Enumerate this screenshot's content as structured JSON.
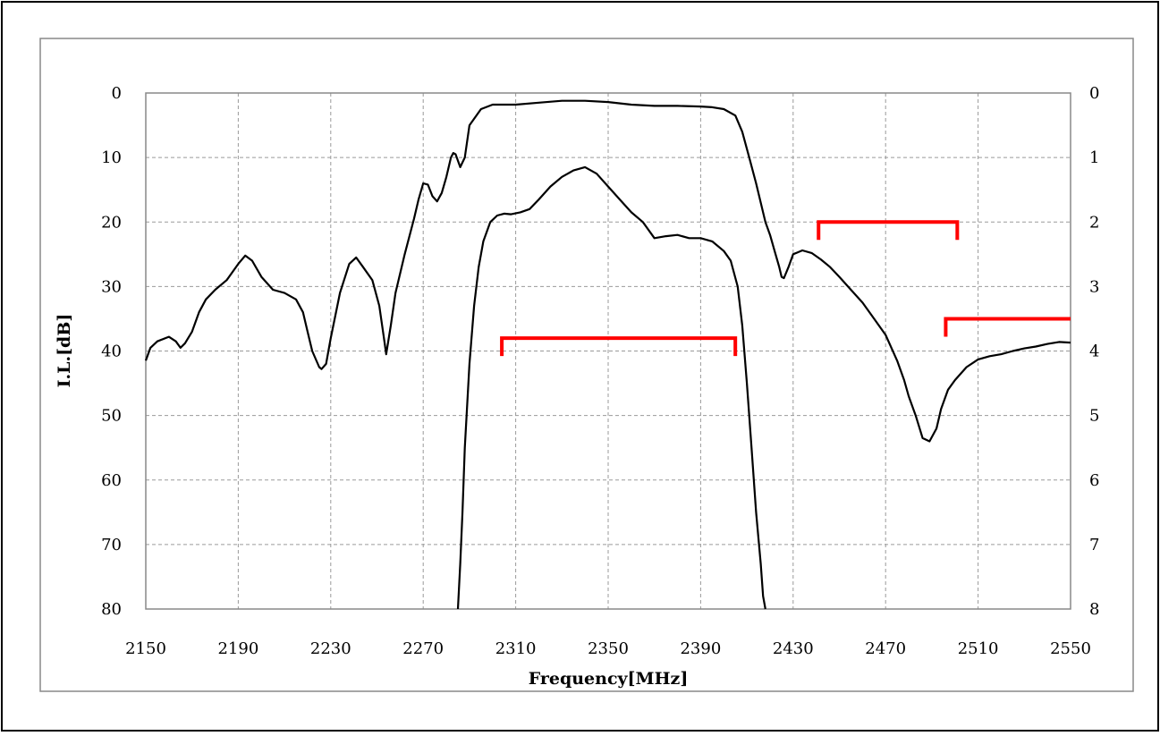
{
  "chart_data": {
    "type": "line",
    "xlabel": "Frequency[MHz]",
    "ylabel": "I.L.[dB]",
    "xlim": [
      2150,
      2550
    ],
    "ylim_left": [
      0,
      80
    ],
    "ylim_right": [
      0,
      8
    ],
    "y_inverted": true,
    "grid": true,
    "x_ticks": [
      "2150",
      "2190",
      "2230",
      "2270",
      "2310",
      "2350",
      "2390",
      "2430",
      "2470",
      "2510",
      "2550"
    ],
    "y_ticks_left": [
      "0",
      "10",
      "20",
      "30",
      "40",
      "50",
      "60",
      "70",
      "80"
    ],
    "y_ticks_right": [
      "0",
      "1",
      "2",
      "3",
      "4",
      "5",
      "6",
      "7",
      "8"
    ],
    "series": [
      {
        "axis": "left",
        "color": "#000000",
        "x": [
          2150,
          2152,
          2155,
          2160,
          2163,
          2165,
          2167,
          2170,
          2173,
          2176,
          2180,
          2185,
          2190,
          2193,
          2196,
          2200,
          2205,
          2210,
          2215,
          2218,
          2220,
          2222,
          2225,
          2226,
          2228,
          2230,
          2234,
          2238,
          2241,
          2244,
          2248,
          2251,
          2253,
          2254,
          2256,
          2258,
          2262,
          2266,
          2268,
          2270,
          2272,
          2274,
          2276,
          2278,
          2280,
          2282,
          2283,
          2284,
          2286,
          2288,
          2290,
          2295,
          2300,
          2310,
          2320,
          2330,
          2340,
          2350,
          2360,
          2370,
          2380,
          2390,
          2395,
          2400,
          2405,
          2408,
          2411,
          2414,
          2416,
          2418,
          2420,
          2422,
          2424,
          2425,
          2426,
          2428,
          2430,
          2434,
          2438,
          2442,
          2446,
          2450,
          2455,
          2460,
          2465,
          2470,
          2475,
          2478,
          2480,
          2483,
          2486,
          2489,
          2492,
          2494,
          2497,
          2500,
          2505,
          2510,
          2515,
          2520,
          2525,
          2530,
          2535,
          2540,
          2545,
          2550
        ],
        "y": [
          41.5,
          39.5,
          38.5,
          37.8,
          38.5,
          39.5,
          38.8,
          37,
          34,
          32,
          30.5,
          29,
          26.5,
          25.2,
          26,
          28.5,
          30.5,
          31,
          32,
          34,
          37,
          40,
          42.5,
          42.8,
          42,
          38,
          31,
          26.5,
          25.5,
          27,
          29,
          33,
          38,
          40.5,
          36,
          31,
          25,
          19.5,
          16.5,
          14,
          14.2,
          16,
          16.8,
          15.5,
          13,
          10,
          9.3,
          9.5,
          11.5,
          10,
          5,
          2.5,
          1.8,
          1.8,
          1.5,
          1.2,
          1.2,
          1.4,
          1.8,
          2,
          2,
          2.1,
          2.2,
          2.5,
          3.5,
          6,
          10,
          14,
          17,
          20,
          22,
          24.5,
          27,
          28.5,
          28.7,
          27,
          25,
          24.4,
          24.8,
          25.8,
          27,
          28.5,
          30.5,
          32.5,
          35,
          37.5,
          41.5,
          44.5,
          47,
          50,
          53.5,
          54,
          52,
          49,
          46,
          44.5,
          42.5,
          41.3,
          40.8,
          40.5,
          40,
          39.6,
          39.3,
          38.9,
          38.6,
          38.7
        ]
      },
      {
        "axis": "right",
        "color": "#000000",
        "x": [
          2285,
          2286,
          2287,
          2288,
          2290,
          2292,
          2294,
          2296,
          2299,
          2302,
          2305,
          2308,
          2312,
          2316,
          2320,
          2325,
          2330,
          2335,
          2340,
          2345,
          2350,
          2355,
          2360,
          2365,
          2370,
          2375,
          2380,
          2385,
          2390,
          2395,
          2400,
          2403,
          2406,
          2408,
          2410,
          2412,
          2414,
          2416,
          2417,
          2418
        ],
        "y": [
          8,
          7.3,
          6.5,
          5.5,
          4.2,
          3.3,
          2.7,
          2.3,
          2.0,
          1.9,
          1.87,
          1.88,
          1.85,
          1.8,
          1.65,
          1.45,
          1.3,
          1.2,
          1.15,
          1.25,
          1.45,
          1.65,
          1.85,
          2.0,
          2.25,
          2.22,
          2.2,
          2.25,
          2.25,
          2.3,
          2.45,
          2.6,
          3.0,
          3.6,
          4.5,
          5.5,
          6.5,
          7.3,
          7.8,
          8
        ]
      }
    ],
    "annotations": [
      {
        "color": "#ff0000",
        "axis": "left",
        "x_start": 2304,
        "x_end": 2405,
        "y": 38
      },
      {
        "color": "#ff0000",
        "axis": "left",
        "x_start": 2441,
        "x_end": 2501,
        "y": 20
      },
      {
        "color": "#ff0000",
        "axis": "left",
        "x_start": 2496,
        "x_end": 2550,
        "y": 35
      }
    ]
  }
}
